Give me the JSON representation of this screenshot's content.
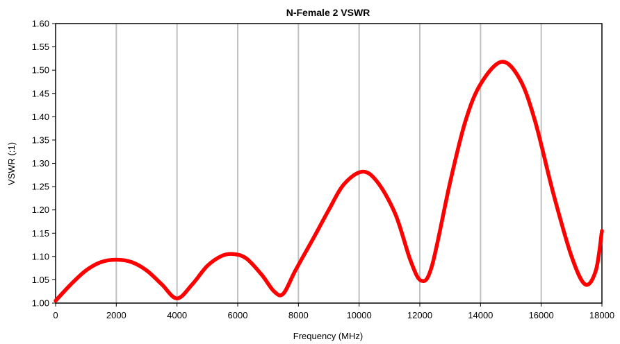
{
  "chart_data": {
    "type": "line",
    "title": "N-Female 2 VSWR",
    "xlabel": "Frequency (MHz)",
    "ylabel": "VSWR (:1)",
    "xlim": [
      0,
      18000
    ],
    "ylim": [
      1.0,
      1.6
    ],
    "xticks": [
      0,
      2000,
      4000,
      6000,
      8000,
      10000,
      12000,
      14000,
      16000,
      18000
    ],
    "yticks": [
      1.0,
      1.05,
      1.1,
      1.15,
      1.2,
      1.25,
      1.3,
      1.35,
      1.4,
      1.45,
      1.5,
      1.55,
      1.6
    ],
    "grid": "vertical",
    "legend": "none",
    "series": [
      {
        "color": "#ff0000",
        "x": [
          0,
          500,
          1000,
          1500,
          2000,
          2500,
          3000,
          3500,
          4000,
          4500,
          5000,
          5500,
          5900,
          6300,
          6800,
          7200,
          7500,
          7900,
          8500,
          9000,
          9500,
          10100,
          10600,
          11200,
          11700,
          12050,
          12400,
          13000,
          13500,
          14000,
          14700,
          15300,
          15800,
          16400,
          17000,
          17450,
          17800,
          18000
        ],
        "y": [
          1.005,
          1.04,
          1.07,
          1.088,
          1.093,
          1.088,
          1.07,
          1.04,
          1.01,
          1.04,
          1.08,
          1.102,
          1.105,
          1.095,
          1.06,
          1.025,
          1.02,
          1.07,
          1.14,
          1.2,
          1.255,
          1.282,
          1.26,
          1.19,
          1.09,
          1.048,
          1.08,
          1.26,
          1.39,
          1.47,
          1.518,
          1.48,
          1.39,
          1.235,
          1.1,
          1.04,
          1.07,
          1.155
        ]
      }
    ]
  }
}
